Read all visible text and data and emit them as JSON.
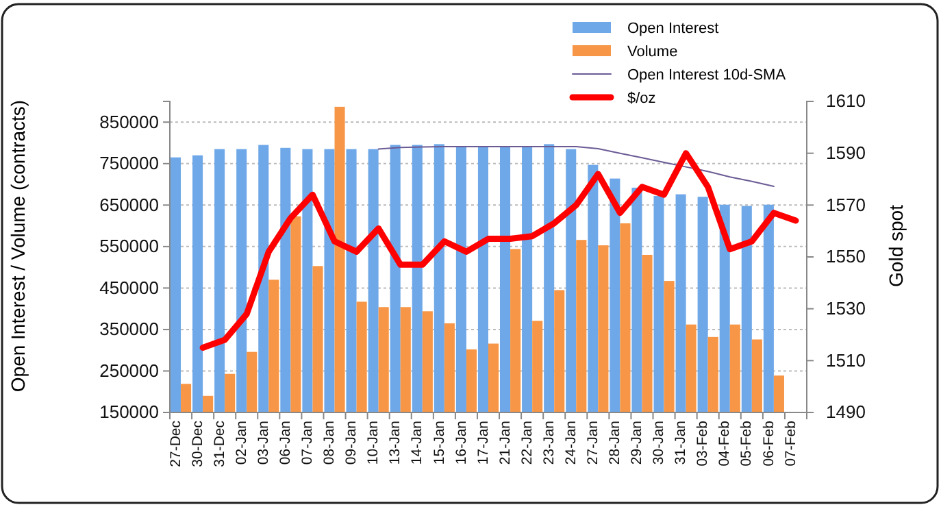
{
  "chart_data": {
    "type": "bar",
    "ylabel": "Open Interest / Volume (contracts)",
    "y2label": "Gold spot",
    "categories": [
      "27-Dec",
      "30-Dec",
      "31-Dec",
      "02-Jan",
      "03-Jan",
      "06-Jan",
      "07-Jan",
      "08-Jan",
      "09-Jan",
      "10-Jan",
      "13-Jan",
      "14-Jan",
      "15-Jan",
      "16-Jan",
      "17-Jan",
      "21-Jan",
      "22-Jan",
      "23-Jan",
      "24-Jan",
      "27-Jan",
      "28-Jan",
      "29-Jan",
      "30-Jan",
      "31-Jan",
      "03-Feb",
      "04-Feb",
      "05-Feb",
      "06-Feb",
      "07-Feb"
    ],
    "series": [
      {
        "name": "Open Interest",
        "color": "#6fa8e8",
        "values": [
          765000,
          770000,
          785000,
          785000,
          795000,
          788000,
          785000,
          785000,
          785000,
          785000,
          795000,
          795000,
          797000,
          790000,
          790000,
          790000,
          790000,
          797000,
          785000,
          747000,
          714000,
          692000,
          672000,
          676000,
          670000,
          651000,
          648000,
          651000,
          null
        ]
      },
      {
        "name": "Volume",
        "color": "#f79646",
        "values": [
          219000,
          190000,
          243000,
          296000,
          470000,
          623000,
          503000,
          887000,
          417000,
          404000,
          404000,
          394000,
          365000,
          302000,
          316000,
          544000,
          371000,
          445000,
          566000,
          553000,
          606000,
          530000,
          467000,
          362000,
          332000,
          362000,
          326000,
          239000,
          null
        ]
      },
      {
        "name": "Open Interest 10d-SMA",
        "type": "line",
        "color": "#6b5b95",
        "values": [
          null,
          null,
          null,
          null,
          null,
          null,
          null,
          null,
          null,
          785000,
          789000,
          790000,
          791000,
          791000,
          791000,
          791000,
          791000,
          791000,
          791000,
          786000,
          775000,
          764000,
          753000,
          742000,
          731000,
          718000,
          707000,
          695000,
          null
        ]
      },
      {
        "name": "$/oz",
        "type": "line",
        "axis": "y2",
        "color": "#ff0000",
        "values": [
          null,
          1515,
          1518,
          1528,
          1552,
          1565,
          1574,
          1556,
          1552,
          1561,
          1547,
          1547,
          1556,
          1552,
          1557,
          1557,
          1558,
          1563,
          1570,
          1582,
          1567,
          1577,
          1574,
          1590,
          1577,
          1553,
          1556,
          1567,
          1564
        ]
      }
    ],
    "ylim": [
      150000,
      900000
    ],
    "yticks": [
      150000,
      250000,
      350000,
      450000,
      550000,
      650000,
      750000,
      850000
    ],
    "y2lim": [
      1490,
      1610
    ],
    "y2ticks": [
      1490,
      1510,
      1530,
      1550,
      1570,
      1590,
      1610
    ],
    "grid": "y",
    "legend": "top right",
    "marker": "none",
    "line_style": "solid"
  }
}
